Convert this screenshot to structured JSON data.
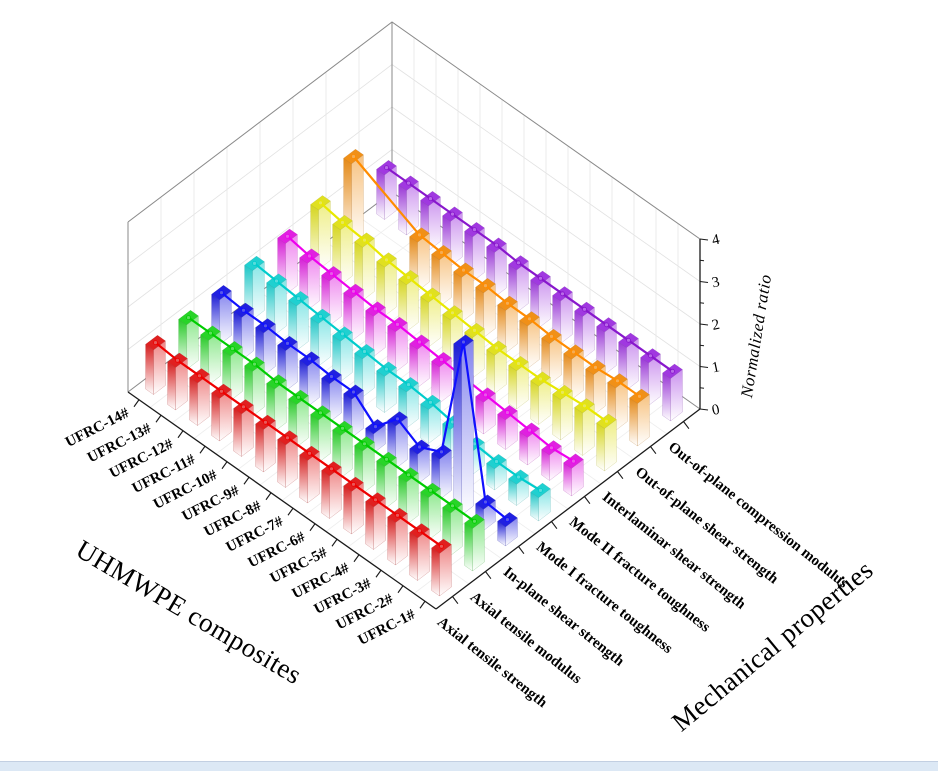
{
  "window": {
    "background_color": "#ffffff",
    "bottom_strip_color": "#dce8f5"
  },
  "chart_data": {
    "type": "bar",
    "subtype": "3d-bar-with-trend-lines",
    "title": "",
    "x_axis": {
      "label": "UHMWPE composites",
      "categories": [
        "UFRC-1#",
        "UFRC-2#",
        "UFRC-3#",
        "UFRC-4#",
        "UFRC-5#",
        "UFRC-6#",
        "UFRC-7#",
        "UFRC-8#",
        "UFRC-9#",
        "UFRC-10#",
        "UFRC-11#",
        "UFRC-12#",
        "UFRC-13#",
        "UFRC-14#"
      ]
    },
    "y_axis": {
      "label": "Mechanical properties",
      "categories": [
        "Axial tensile strength",
        "Axial tensile modulus",
        "In-plane shear strength",
        "Mode I fracture toughness",
        "Mode II fracture toughness",
        "Interlaminar shear strength",
        "Out-of-plane shear strength",
        "Out-of-plane compression modulus"
      ]
    },
    "z_axis": {
      "label": "Normalized ratio",
      "min": 0,
      "max": 4,
      "ticks": [
        0,
        1,
        2,
        3,
        4
      ]
    },
    "grid": true,
    "legend": "none",
    "series": [
      {
        "name": "Axial tensile strength",
        "color": "#e02020",
        "line": "#ee0000",
        "values": [
          1.0,
          1.0,
          1.0,
          1.0,
          1.0,
          1.0,
          1.0,
          1.0,
          1.0,
          1.0,
          1.0,
          1.0,
          1.0,
          1.05
        ]
      },
      {
        "name": "Axial tensile modulus",
        "color": "#28d428",
        "line": "#00cc00",
        "values": [
          1.0,
          1.0,
          1.0,
          1.0,
          1.0,
          1.0,
          1.0,
          1.0,
          1.0,
          1.0,
          1.05,
          1.05,
          1.05,
          1.05
        ]
      },
      {
        "name": "In-plane shear strength",
        "color": "#2020e0",
        "line": "#1010ff",
        "values": [
          0.45,
          0.5,
          3.9,
          0.95,
          0.7,
          1.0,
          0.45,
          0.9,
          0.9,
          0.95,
          0.95,
          1.0,
          1.0,
          1.05
        ]
      },
      {
        "name": "Mode I fracture toughness",
        "color": "#20d0d0",
        "line": "#00cccc",
        "values": [
          0.55,
          0.5,
          0.5,
          0.55,
          0.7,
          0.8,
          0.85,
          0.85,
          0.9,
          0.95,
          1.0,
          1.05,
          1.1,
          1.15
        ]
      },
      {
        "name": "Mode II fracture toughness",
        "color": "#e020e0",
        "line": "#ee00ee",
        "values": [
          0.65,
          0.6,
          0.65,
          0.7,
          0.75,
          0.8,
          0.85,
          0.9,
          0.95,
          0.95,
          1.0,
          1.05,
          1.1,
          1.2
        ]
      },
      {
        "name": "Interlaminar shear strength",
        "color": "#e0e020",
        "line": "#e8e800",
        "values": [
          1.0,
          1.0,
          0.95,
          0.9,
          0.9,
          0.9,
          0.95,
          1.0,
          1.05,
          1.1,
          1.15,
          1.25,
          1.3,
          1.4
        ]
      },
      {
        "name": "Out-of-plane shear strength",
        "color": "#f09018",
        "line": "#ff8c00",
        "values": [
          1.0,
          1.0,
          0.95,
          0.95,
          0.95,
          1.0,
          1.0,
          1.05,
          1.05,
          1.1,
          1.15,
          null,
          null,
          1.9
        ]
      },
      {
        "name": "Out-of-plane compression modulus",
        "color": "#a038e0",
        "line": "#8818cc",
        "values": [
          1.0,
          1.0,
          1.0,
          1.0,
          1.0,
          1.0,
          1.0,
          1.0,
          1.05,
          1.05,
          1.05,
          1.05,
          1.05,
          1.05
        ]
      }
    ]
  }
}
